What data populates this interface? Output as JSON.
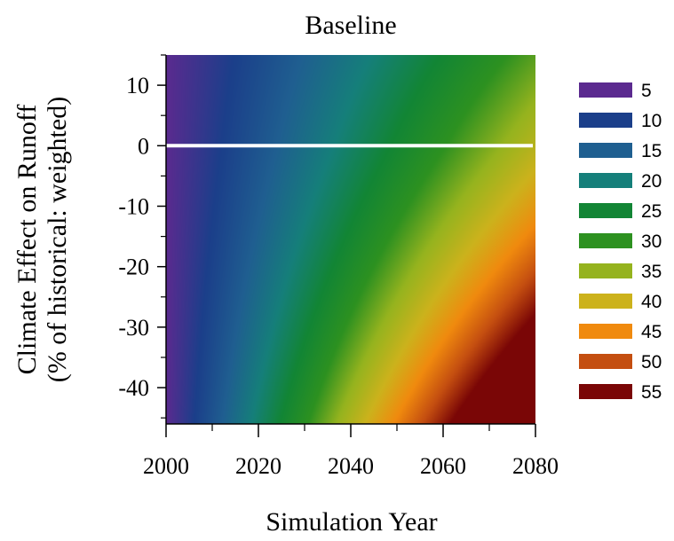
{
  "chart_data": {
    "type": "heatmap",
    "title": "Baseline",
    "xlabel": "Simulation Year",
    "ylabel_line1": "Climate Effect on Runoff",
    "ylabel_line2": "(% of historical: weighted)",
    "xlim": [
      2000,
      2080
    ],
    "ylim": [
      -46,
      15
    ],
    "x_ticks": [
      2000,
      2020,
      2040,
      2060,
      2080
    ],
    "x_tick_labels": [
      "2000",
      "2020",
      "2040",
      "2060",
      "2080"
    ],
    "y_ticks": [
      10,
      0,
      -10,
      -20,
      -30,
      -40
    ],
    "y_tick_labels": [
      "10",
      "0",
      "-10",
      "-20",
      "-30",
      "-40"
    ],
    "reference_line": {
      "y": 0,
      "x_range": [
        2000,
        2080
      ],
      "color": "#ffffff"
    },
    "contour_levels": [
      {
        "label": "5",
        "value": 5,
        "color": "#5b2a8f"
      },
      {
        "label": "10",
        "value": 10,
        "color": "#1b3f8a"
      },
      {
        "label": "15",
        "value": 15,
        "color": "#1f5f90"
      },
      {
        "label": "20",
        "value": 20,
        "color": "#157f7a"
      },
      {
        "label": "25",
        "value": 25,
        "color": "#128535"
      },
      {
        "label": "30",
        "value": 30,
        "color": "#2d9120"
      },
      {
        "label": "35",
        "value": 35,
        "color": "#95b31e"
      },
      {
        "label": "40",
        "value": 40,
        "color": "#ccb21c"
      },
      {
        "label": "45",
        "value": 45,
        "color": "#f08a0e"
      },
      {
        "label": "50",
        "value": 50,
        "color": "#c44e10"
      },
      {
        "label": "55",
        "value": 55,
        "color": "#7a0606"
      }
    ],
    "grid": false,
    "legend_placement": "right"
  }
}
